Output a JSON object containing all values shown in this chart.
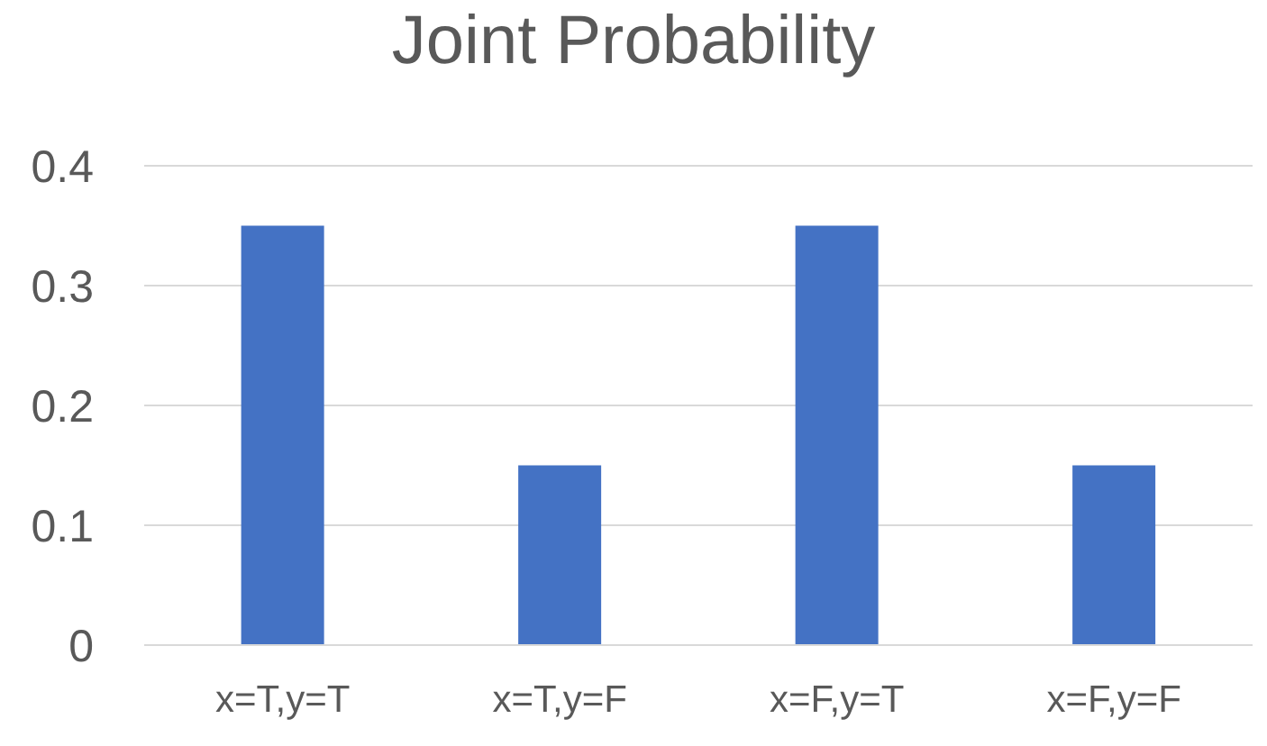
{
  "chart_data": {
    "type": "bar",
    "title": "Joint Probability",
    "categories": [
      "x=T,y=T",
      "x=T,y=F",
      "x=F,y=T",
      "x=F,y=F"
    ],
    "values": [
      0.35,
      0.15,
      0.35,
      0.15
    ],
    "color": "#4472c4",
    "ylim": [
      0,
      0.4
    ],
    "yticks": [
      0,
      0.1,
      0.2,
      0.3,
      0.4
    ],
    "grid": "y"
  }
}
